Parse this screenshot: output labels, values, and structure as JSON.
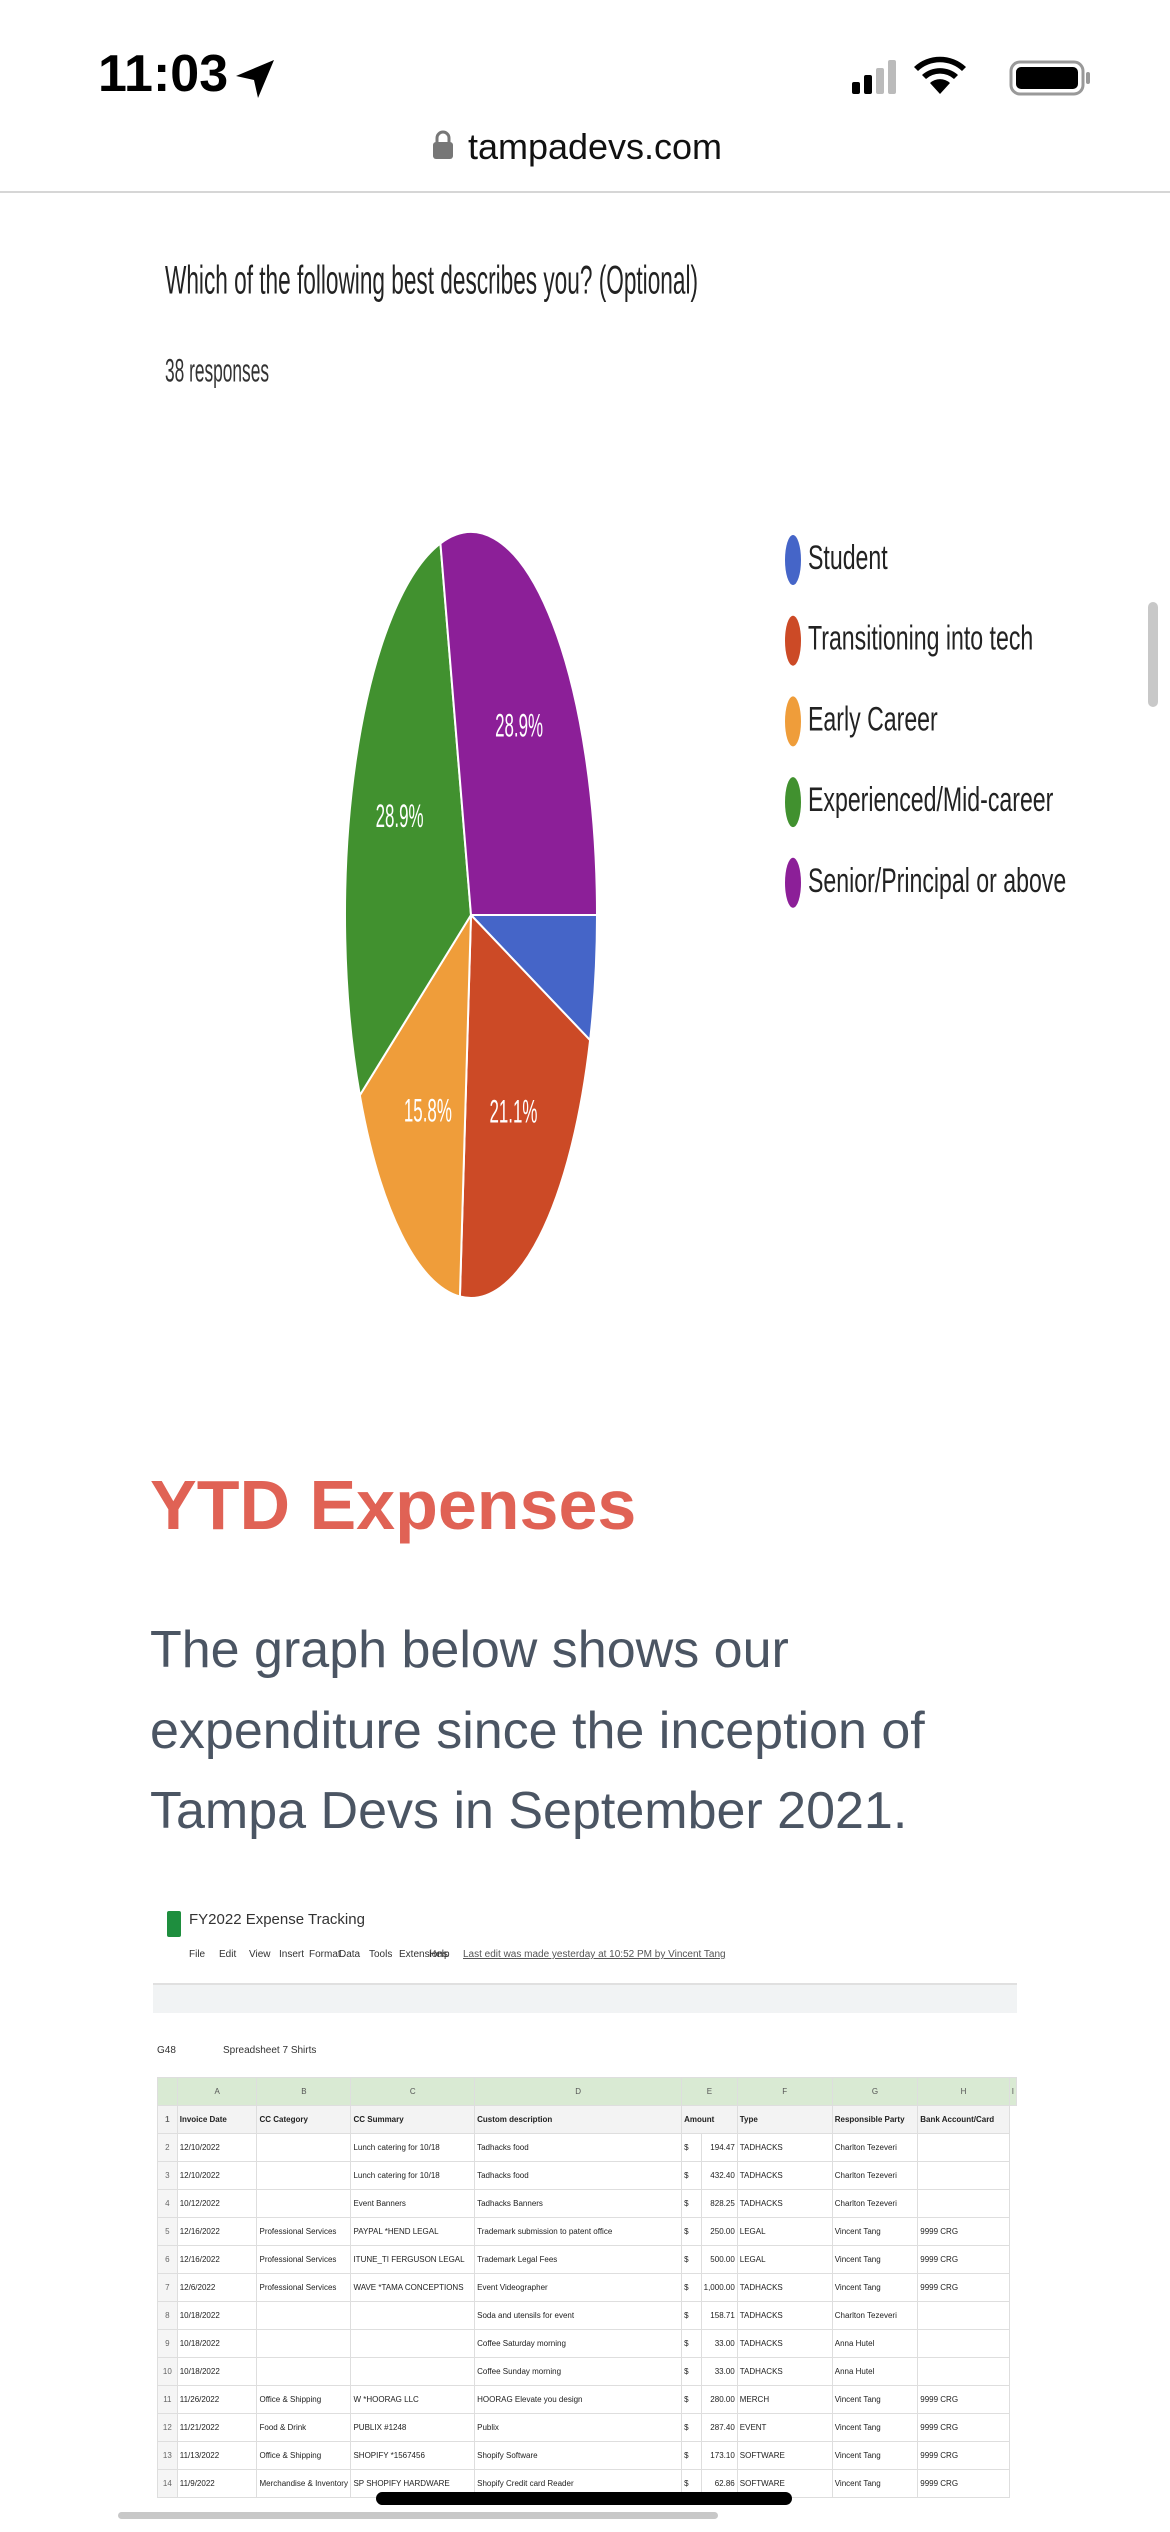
{
  "status_bar": {
    "time": "11:03"
  },
  "url_bar": {
    "url": "tampadevs.com"
  },
  "chart_data": {
    "type": "pie",
    "title": "Which of the following best describes you? (Optional)",
    "subtitle": "38 responses",
    "categories": [
      "Student",
      "Transitioning into tech",
      "Early Career",
      "Experienced/Mid-career",
      "Senior/Principal or above"
    ],
    "values": [
      5.3,
      21.1,
      15.8,
      28.9,
      28.9
    ],
    "value_labels": [
      null,
      "21.1%",
      "15.8%",
      "28.9%",
      "28.9%"
    ],
    "colors": [
      "#4565c8",
      "#cc4a26",
      "#ef9d3a",
      "#41912f",
      "#8c1f98"
    ],
    "legend": "right"
  },
  "section": {
    "heading": "YTD Expenses",
    "paragraph": [
      "The graph below shows our",
      "expenditure since the inception of",
      "Tampa Devs in September 2021."
    ]
  },
  "spreadsheet": {
    "title": "FY2022 Expense Tracking",
    "menu": [
      "File",
      "Edit",
      "View",
      "Insert",
      "Format",
      "Data",
      "Tools",
      "Extensions",
      "Help"
    ],
    "last_edit": "Last edit was made yesterday at 10:52 PM by Vincent Tang",
    "cell_ref": "G48",
    "formula": "Spreadsheet 7 Shirts",
    "column_letters": [
      "A",
      "B",
      "C",
      "D",
      "E",
      "F",
      "G",
      "H",
      "I"
    ],
    "header": [
      "1",
      "Invoice Date",
      "CC Category",
      "CC Summary",
      "Custom description",
      "Amount",
      "Type",
      "Responsible Party",
      "Bank Account/Card"
    ],
    "rows": [
      [
        "2",
        "12/10/2022",
        "",
        "Lunch catering for 10/18",
        "Tadhacks food",
        "$",
        "194.47",
        "TADHACKS",
        "Charlton Tezeveri",
        ""
      ],
      [
        "3",
        "12/10/2022",
        "",
        "Lunch catering for 10/18",
        "Tadhacks food",
        "$",
        "432.40",
        "TADHACKS",
        "Charlton Tezeveri",
        ""
      ],
      [
        "4",
        "10/12/2022",
        "",
        "Event Banners",
        "Tadhacks Banners",
        "$",
        "828.25",
        "TADHACKS",
        "Charlton Tezeveri",
        ""
      ],
      [
        "5",
        "12/16/2022",
        "Professional Services",
        "PAYPAL *HEND LEGAL",
        "Trademark submission to patent office",
        "$",
        "250.00",
        "LEGAL",
        "Vincent Tang",
        "9999 CRG"
      ],
      [
        "6",
        "12/16/2022",
        "Professional Services",
        "ITUNE_TI FERGUSON LEGAL",
        "Trademark Legal Fees",
        "$",
        "500.00",
        "LEGAL",
        "Vincent Tang",
        "9999 CRG"
      ],
      [
        "7",
        "12/6/2022",
        "Professional Services",
        "WAVE *TAMA CONCEPTIONS",
        "Event Videographer",
        "$",
        "1,000.00",
        "TADHACKS",
        "Vincent Tang",
        "9999 CRG"
      ],
      [
        "8",
        "10/18/2022",
        "",
        "",
        "Soda and utensils for event",
        "$",
        "158.71",
        "TADHACKS",
        "Charlton Tezeveri",
        ""
      ],
      [
        "9",
        "10/18/2022",
        "",
        "",
        "Coffee Saturday morning",
        "$",
        "33.00",
        "TADHACKS",
        "Anna Hutel",
        ""
      ],
      [
        "10",
        "10/18/2022",
        "",
        "",
        "Coffee Sunday morning",
        "$",
        "33.00",
        "TADHACKS",
        "Anna Hutel",
        ""
      ],
      [
        "11",
        "11/26/2022",
        "Office & Shipping",
        "W *HOORAG LLC",
        "HOORAG Elevate you design",
        "$",
        "280.00",
        "MERCH",
        "Vincent Tang",
        "9999 CRG"
      ],
      [
        "12",
        "11/21/2022",
        "Food & Drink",
        "PUBLIX #1248",
        "Publix",
        "$",
        "287.40",
        "EVENT",
        "Vincent Tang",
        "9999 CRG"
      ],
      [
        "13",
        "11/13/2022",
        "Office & Shipping",
        "SHOPIFY *1567456",
        "Shopify Software",
        "$",
        "173.10",
        "SOFTWARE",
        "Vincent Tang",
        "9999 CRG"
      ],
      [
        "14",
        "11/9/2022",
        "Merchandise & Inventory",
        "SP SHOPIFY HARDWARE",
        "Shopify Credit card Reader",
        "$",
        "62.86",
        "SOFTWARE",
        "Vincent Tang",
        "9999 CRG"
      ]
    ]
  }
}
